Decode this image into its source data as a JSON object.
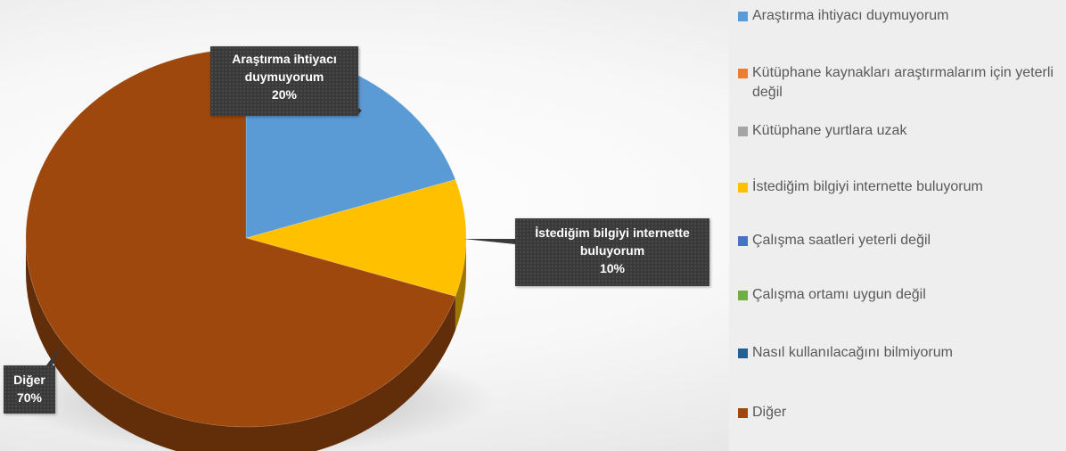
{
  "chart_data": {
    "type": "pie",
    "categories": [
      "Araştırma ihtiyacı duymuyorum",
      "Kütüphane kaynakları araştırmalarım için yeterli değil",
      "Kütüphane yurtlara uzak",
      "İstediğim bilgiyi internette buluyorum",
      "Çalışma saatleri yeterli değil",
      "Çalışma ortamı uygun değil",
      "Nasıl kullanılacağını bilmiyorum",
      "Diğer"
    ],
    "values": [
      20,
      0,
      0,
      10,
      0,
      0,
      0,
      70
    ],
    "colors": [
      "#5b9bd5",
      "#ed7d31",
      "#a5a5a5",
      "#ffc000",
      "#4472c4",
      "#70ad47",
      "#255e91",
      "#9e480e"
    ],
    "legend_position": "right",
    "data_labels": [
      {
        "name_lines": [
          "Araştırma ihtiyacı",
          "duymuyorum"
        ],
        "percent": "20%"
      },
      {
        "name_lines": [
          "İstediğim bilgiyi internette",
          "buluyorum"
        ],
        "percent": "10%"
      },
      {
        "name_lines": [
          "Diğer"
        ],
        "percent": "70%"
      }
    ]
  },
  "legend": {
    "items": [
      {
        "label": "Araştırma ihtiyacı duymuyorum",
        "color": "#5b9bd5"
      },
      {
        "label": "Kütüphane kaynakları araştırmalarım için yeterli değil",
        "color": "#ed7d31"
      },
      {
        "label": "Kütüphane yurtlara uzak",
        "color": "#a5a5a5"
      },
      {
        "label": "İstediğim bilgiyi internette buluyorum",
        "color": "#ffc000"
      },
      {
        "label": "Çalışma saatleri yeterli değil",
        "color": "#4472c4"
      },
      {
        "label": "Çalışma ortamı uygun değil",
        "color": "#70ad47"
      },
      {
        "label": "Nasıl kullanılacağını bilmiyorum",
        "color": "#255e91"
      },
      {
        "label": "Diğer",
        "color": "#9e480e"
      }
    ]
  }
}
